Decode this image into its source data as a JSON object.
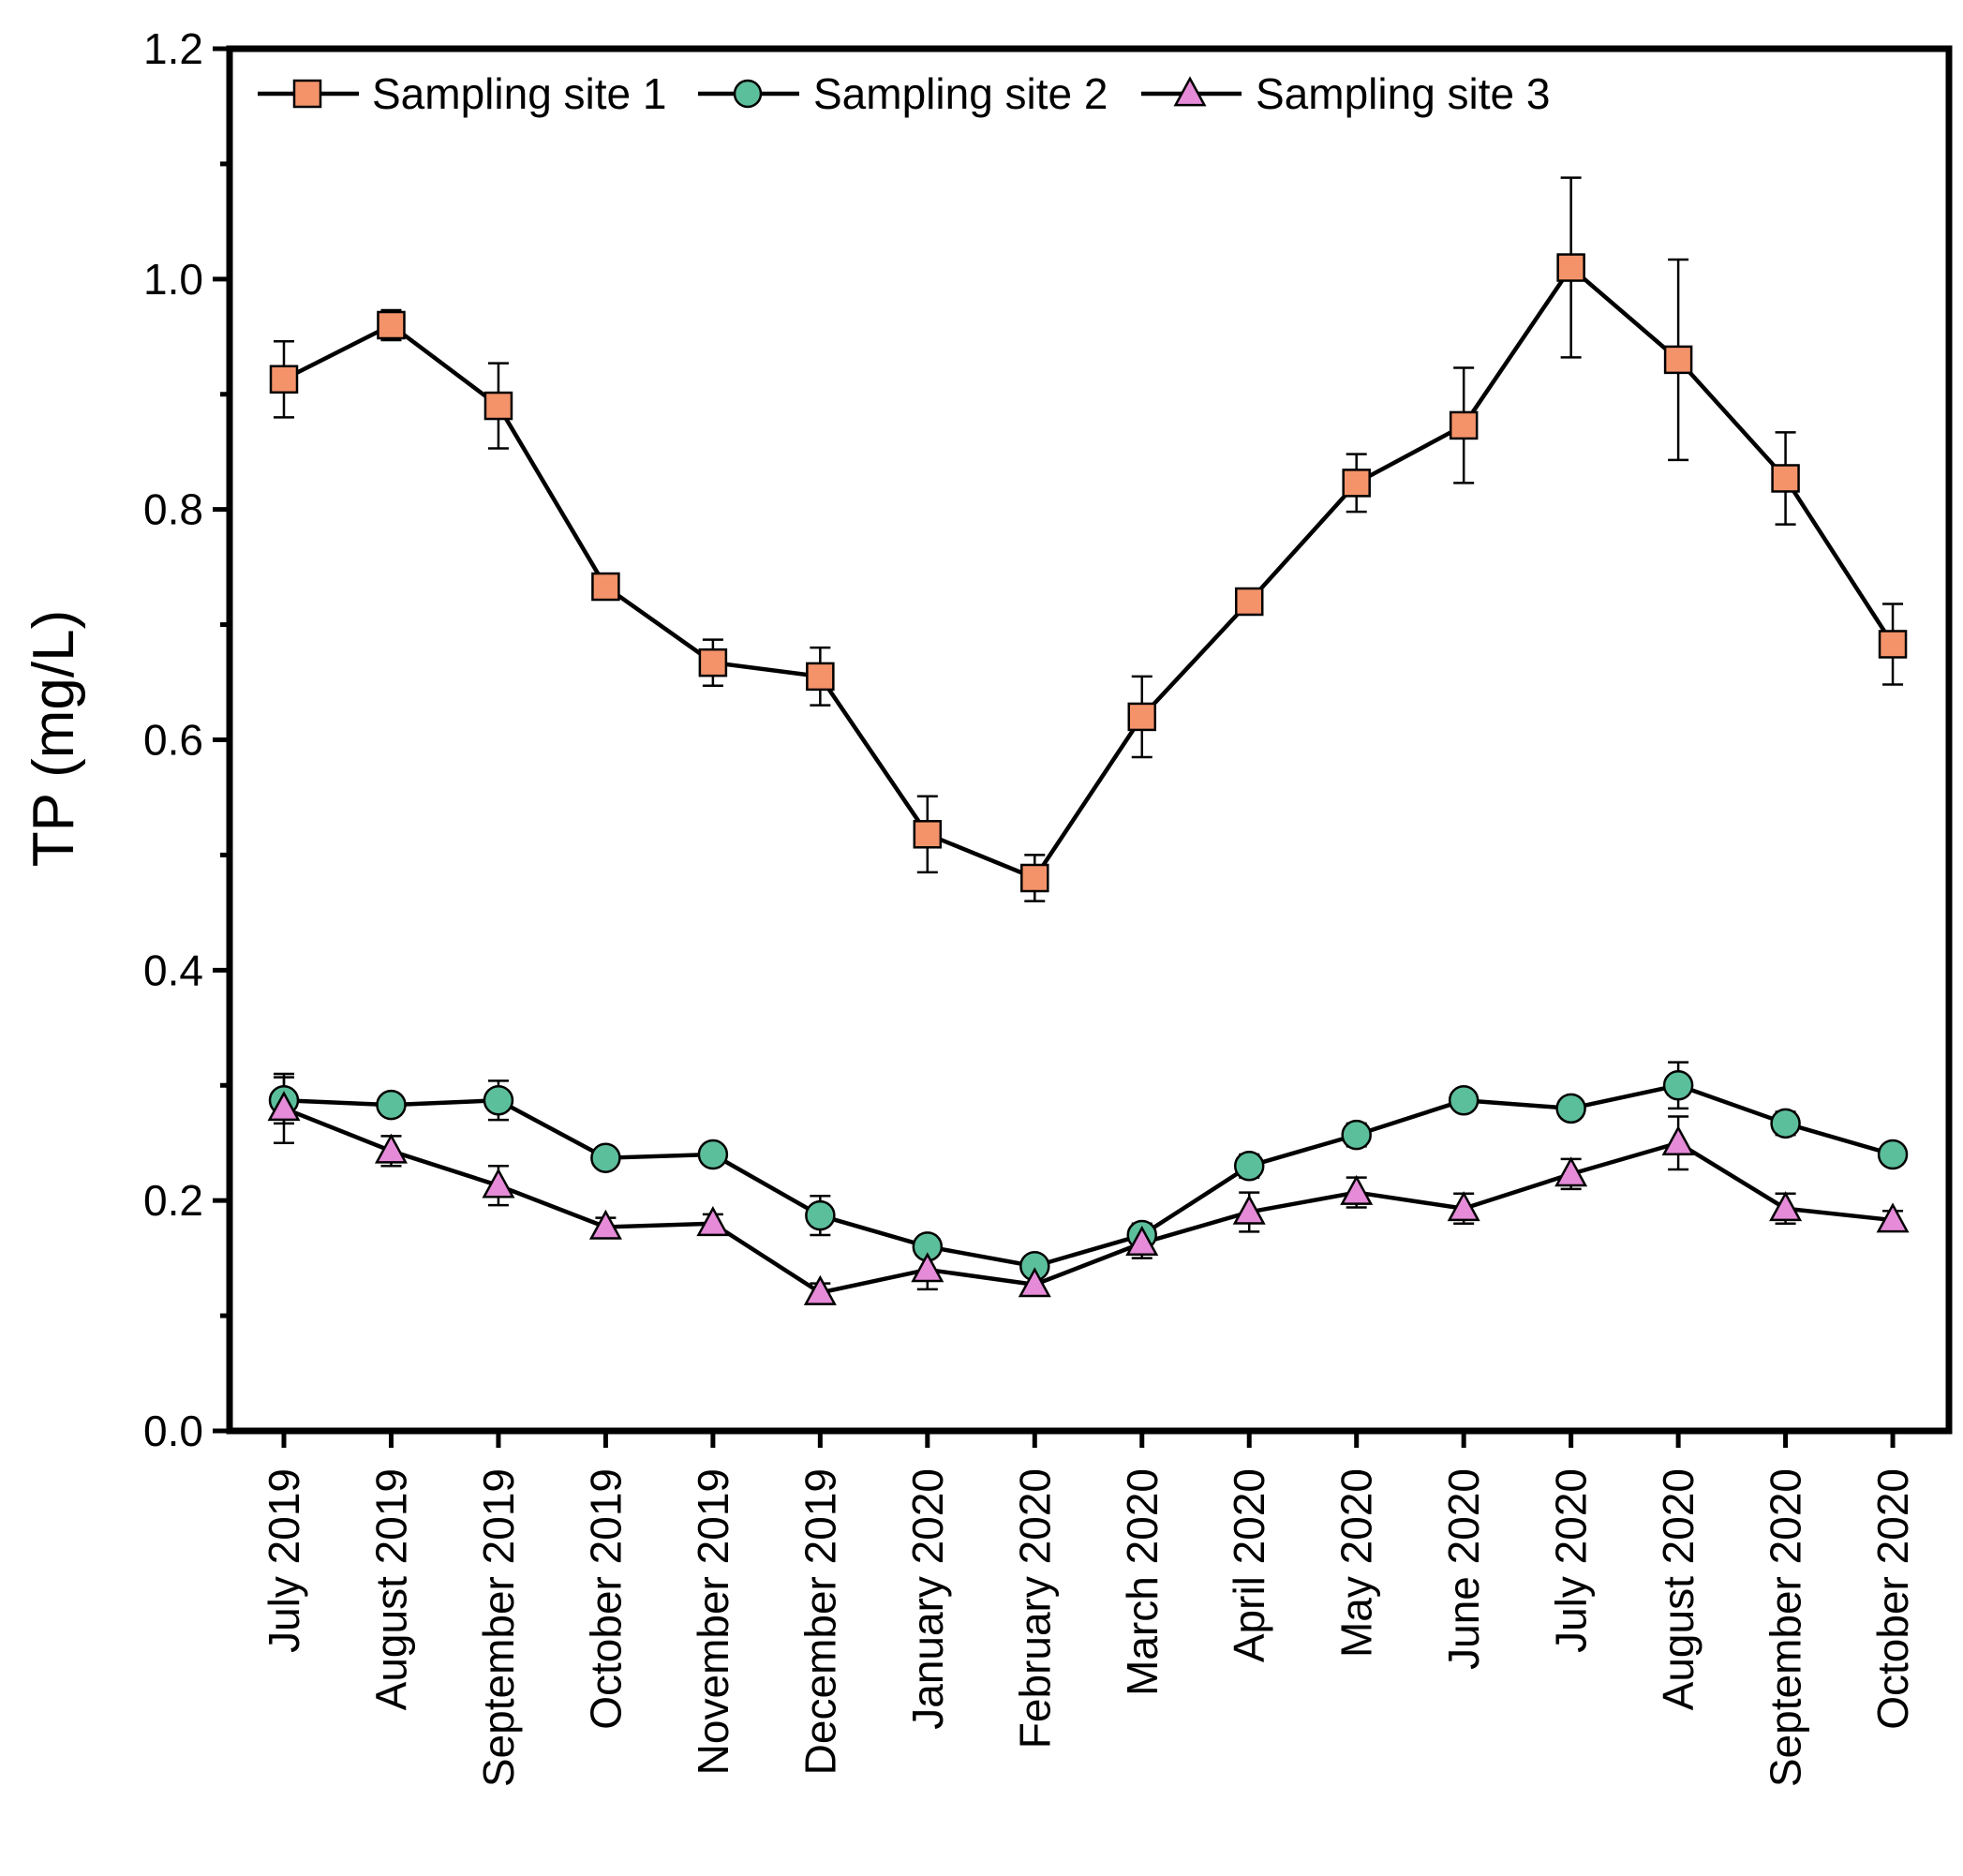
{
  "chart_data": {
    "type": "line",
    "title": "",
    "xlabel": "",
    "ylabel": "TP (mg/L)",
    "ylim": [
      0.0,
      1.2
    ],
    "yticks": [
      "0.0",
      "0.2",
      "0.4",
      "0.6",
      "0.8",
      "1.0",
      "1.2"
    ],
    "grid": false,
    "legend_position": "top-left",
    "categories": [
      "July 2019",
      "August 2019",
      "September 2019",
      "October 2019",
      "November 2019",
      "December 2019",
      "January 2020",
      "February 2020",
      "March 2020",
      "April 2020",
      "May 2020",
      "June 2020",
      "July 2020",
      "August 2020",
      "September 2020",
      "October 2020"
    ],
    "series": [
      {
        "name": "Sampling site 1",
        "marker": "square",
        "color": "#f4936a",
        "values": [
          0.913,
          0.96,
          0.89,
          0.733,
          0.667,
          0.655,
          0.518,
          0.48,
          0.62,
          0.72,
          0.823,
          0.873,
          1.01,
          0.93,
          0.827,
          0.683
        ],
        "errors": [
          0.033,
          0.013,
          0.037,
          0.01,
          0.02,
          0.025,
          0.033,
          0.02,
          0.035,
          0.01,
          0.025,
          0.05,
          0.078,
          0.087,
          0.04,
          0.035
        ]
      },
      {
        "name": "Sampling site 2",
        "marker": "circle",
        "color": "#5cbf9b",
        "values": [
          0.287,
          0.283,
          0.287,
          0.237,
          0.24,
          0.187,
          0.16,
          0.143,
          0.17,
          0.23,
          0.257,
          0.287,
          0.28,
          0.3,
          0.267,
          0.24
        ],
        "errors": [
          0.02,
          0.008,
          0.017,
          0.008,
          0.008,
          0.017,
          0.008,
          0.008,
          0.01,
          0.01,
          0.01,
          0.008,
          0.008,
          0.02,
          0.01,
          0.008
        ]
      },
      {
        "name": "Sampling site 3",
        "marker": "triangle",
        "color": "#e58bd8",
        "values": [
          0.28,
          0.243,
          0.213,
          0.177,
          0.18,
          0.12,
          0.14,
          0.127,
          0.163,
          0.19,
          0.207,
          0.193,
          0.223,
          0.25,
          0.193,
          0.183
        ],
        "errors": [
          0.03,
          0.013,
          0.017,
          0.008,
          0.008,
          0.008,
          0.017,
          0.008,
          0.013,
          0.017,
          0.013,
          0.013,
          0.013,
          0.023,
          0.013,
          0.008
        ]
      }
    ]
  }
}
